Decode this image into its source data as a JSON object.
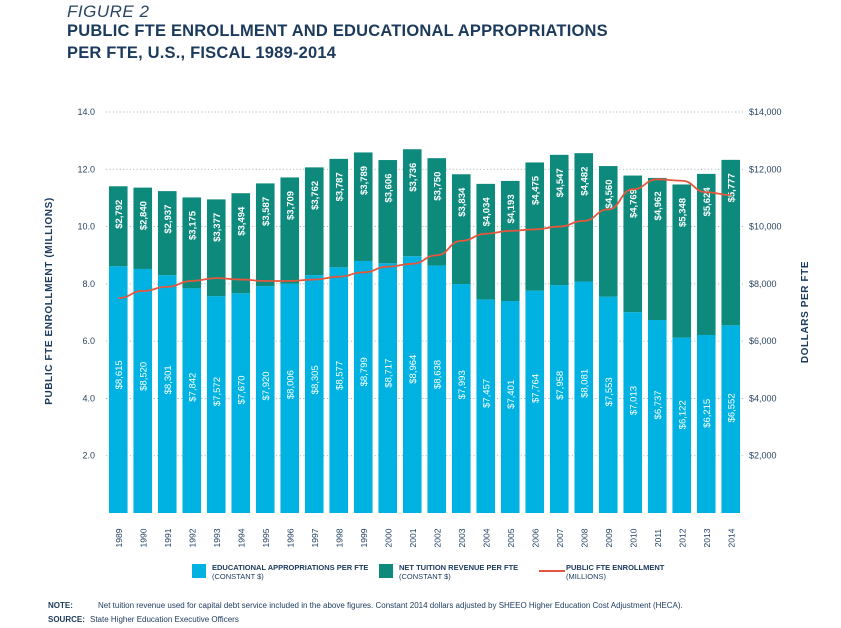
{
  "figure": {
    "label": "FIGURE 2",
    "title_line1": "PUBLIC FTE ENROLLMENT AND EDUCATIONAL APPROPRIATIONS",
    "title_line2": "PER FTE, U.S., FISCAL 1989-2014"
  },
  "chart_data": {
    "type": "bar",
    "stacked": true,
    "categories": [
      "1989",
      "1990",
      "1991",
      "1992",
      "1993",
      "1994",
      "1995",
      "1996",
      "1997",
      "1998",
      "1999",
      "2000",
      "2001",
      "2002",
      "2003",
      "2004",
      "2005",
      "2006",
      "2007",
      "2008",
      "2009",
      "2010",
      "2011",
      "2012",
      "2013",
      "2014"
    ],
    "series": [
      {
        "name": "EDUCATIONAL APPROPRIATIONS PER FTE",
        "subname": "(CONSTANT $)",
        "color": "#00b2e2",
        "axis": "right",
        "values": [
          8615,
          8520,
          8301,
          7842,
          7572,
          7670,
          7920,
          8006,
          8305,
          8577,
          8799,
          8717,
          8964,
          8638,
          7993,
          7457,
          7401,
          7764,
          7958,
          8081,
          7553,
          7013,
          6737,
          6122,
          6215,
          6552
        ],
        "labels": [
          "$8,615",
          "$8,520",
          "$8,301",
          "$7,842",
          "$7,572",
          "$7,670",
          "$7,920",
          "$8,006",
          "$8,305",
          "$8,577",
          "$8,799",
          "$8,717",
          "$8,964",
          "$8,638",
          "$7,993",
          "$7,457",
          "$7,401",
          "$7,764",
          "$7,958",
          "$8,081",
          "$7,553",
          "$7,013",
          "$6,737",
          "$6,122",
          "$6,215",
          "$6,552"
        ]
      },
      {
        "name": "NET TUITION REVENUE PER FTE",
        "subname": "(CONSTANT $)",
        "color": "#0e8a7d",
        "axis": "right",
        "values": [
          2792,
          2840,
          2937,
          3175,
          3377,
          3494,
          3587,
          3709,
          3762,
          3787,
          3789,
          3606,
          3736,
          3750,
          3834,
          4034,
          4193,
          4475,
          4547,
          4482,
          4560,
          4769,
          4962,
          5348,
          5624,
          5777
        ],
        "labels": [
          "$2,792",
          "$2,840",
          "$2,937",
          "$3,175",
          "$3,377",
          "$3,494",
          "$3,587",
          "$3,709",
          "$3,762",
          "$3,787",
          "$3,789",
          "$3,606",
          "$3,736",
          "$3,750",
          "$3,834",
          "$4,034",
          "$4,193",
          "$4,475",
          "$4,547",
          "$4,482",
          "$4,560",
          "$4,769",
          "$4,962",
          "$5,348",
          "$5,624",
          "$5,777"
        ]
      },
      {
        "name": "PUBLIC FTE ENROLLMENT",
        "subname": "(MILLIONS)",
        "type": "line",
        "color": "#e4573d",
        "axis": "left",
        "values": [
          7.5,
          7.75,
          7.9,
          8.1,
          8.2,
          8.15,
          8.1,
          8.1,
          8.15,
          8.25,
          8.4,
          8.6,
          8.7,
          9.0,
          9.5,
          9.75,
          9.85,
          9.9,
          10.0,
          10.2,
          10.6,
          11.3,
          11.65,
          11.6,
          11.2,
          11.1
        ]
      }
    ],
    "y_left": {
      "label": "PUBLIC FTE ENROLLMENT (MILLIONS)",
      "ticks": [
        "2.0",
        "4.0",
        "6.0",
        "8.0",
        "10.0",
        "12.0",
        "14.0"
      ],
      "range": [
        0,
        14
      ]
    },
    "y_right": {
      "label": "DOLLARS PER FTE",
      "ticks": [
        "$2,000",
        "$4,000",
        "$6,000",
        "$8,000",
        "$10,000",
        "$12,000",
        "$14,000"
      ],
      "range": [
        0,
        14000
      ]
    },
    "grid": true,
    "legend_position": "bottom"
  },
  "footer": {
    "note_label": "NOTE:",
    "note_text": "Net tuition revenue used for capital debt service  included in the above figures. Constant 2014 dollars adjusted by SHEEO Higher Education Cost Adjustment (HECA).",
    "source_label": "SOURCE:",
    "source_text": "State Higher Education Executive Officers"
  }
}
